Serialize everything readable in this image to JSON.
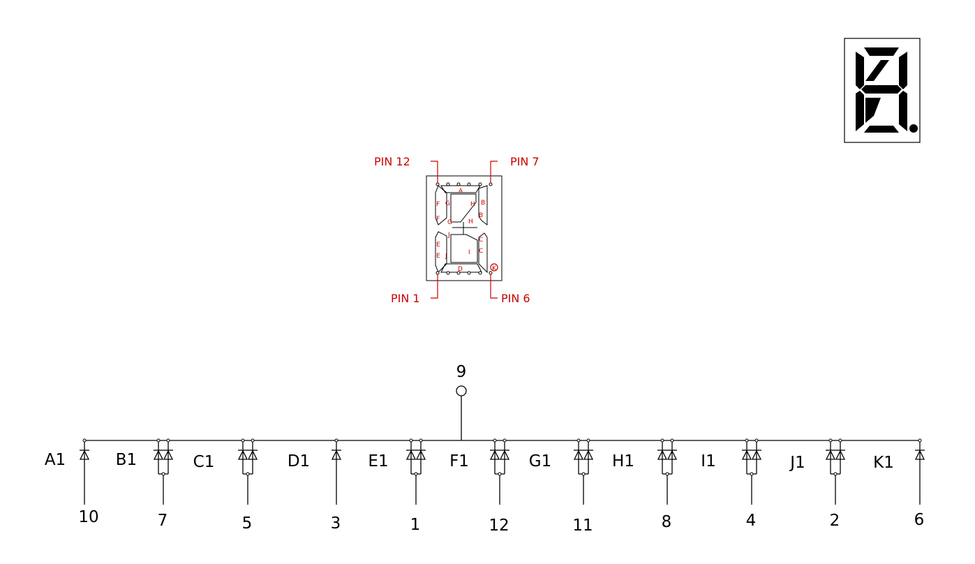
{
  "package_pins": {
    "pin12": "PIN 12",
    "pin7": "PIN 7",
    "pin1": "PIN 1",
    "pin6": "PIN 6"
  },
  "segment_labels": [
    "A",
    "B",
    "B",
    "C",
    "C",
    "D",
    "E",
    "E",
    "F",
    "F",
    "G",
    "G",
    "H",
    "H",
    "I",
    "J",
    "J",
    "K"
  ],
  "common_pin": "9",
  "channels": [
    {
      "name": "A1",
      "pin": "10",
      "type": "single"
    },
    {
      "name": "B1",
      "pin": "7",
      "type": "double"
    },
    {
      "name": "C1",
      "pin": "5",
      "type": "double"
    },
    {
      "name": "D1",
      "pin": "3",
      "type": "single"
    },
    {
      "name": "E1",
      "pin": "1",
      "type": "double"
    },
    {
      "name": "F1",
      "pin": "12",
      "type": "double"
    },
    {
      "name": "G1",
      "pin": "11",
      "type": "double"
    },
    {
      "name": "H1",
      "pin": "8",
      "type": "double"
    },
    {
      "name": "I1",
      "pin": "4",
      "type": "double"
    },
    {
      "name": "J1",
      "pin": "2",
      "type": "double"
    },
    {
      "name": "K1",
      "pin": "6",
      "type": "single"
    }
  ],
  "colors": {
    "annotation": "#cc0000",
    "ink": "#000000",
    "background": "#ffffff"
  }
}
